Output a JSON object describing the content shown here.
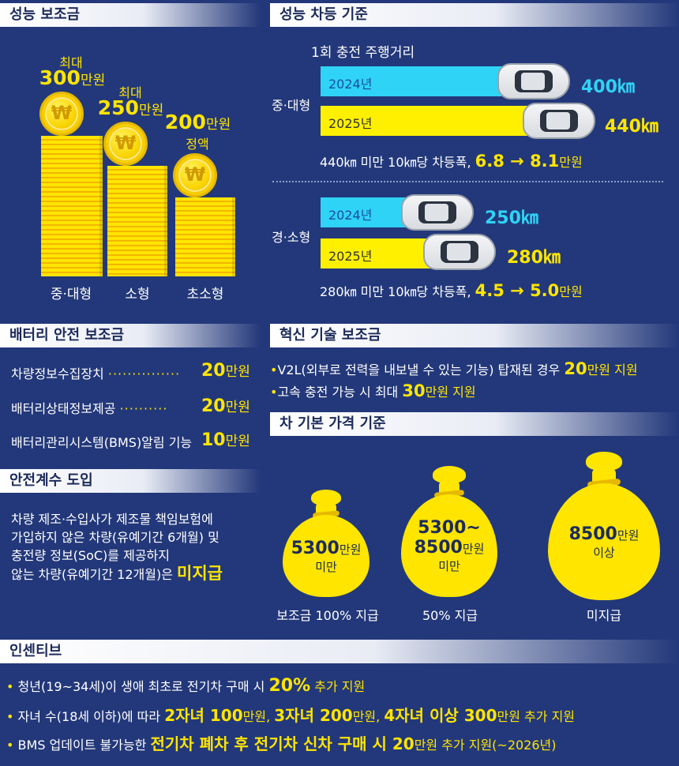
{
  "perf_subsidy": {
    "title": "성능 보조금",
    "bars": [
      {
        "label": "중·대형",
        "cap_top": "최대",
        "amount": "300",
        "unit": "만원",
        "cap_bottom": "",
        "value": 300
      },
      {
        "label": "소형",
        "cap_top": "최대",
        "amount": "250",
        "unit": "만원",
        "cap_bottom": "",
        "value": 250
      },
      {
        "label": "초소형",
        "cap_top": "",
        "amount": "200",
        "unit": "만원",
        "cap_bottom": "정액",
        "value": 200
      }
    ],
    "coin_symbol": "₩"
  },
  "perf_diff": {
    "title": "성능 차등 기준",
    "subtitle": "1회 충전 주행거리",
    "groups": [
      {
        "label": "중·대형",
        "rows": [
          {
            "year": "2024년",
            "range": "400㎞",
            "value": 400
          },
          {
            "year": "2025년",
            "range": "440㎞",
            "value": 440
          }
        ],
        "note_prefix": "440㎞ 미만 10㎞당 차등폭, ",
        "note_change": "6.8 → 8.1",
        "note_unit": "만원"
      },
      {
        "label": "경·소형",
        "rows": [
          {
            "year": "2024년",
            "range": "250㎞",
            "value": 250
          },
          {
            "year": "2025년",
            "range": "280㎞",
            "value": 280
          }
        ],
        "note_prefix": "280㎞ 미만 10㎞당 차등폭, ",
        "note_change": "4.5 → 5.0",
        "note_unit": "만원"
      }
    ]
  },
  "battery": {
    "title": "배터리 안전 보조금",
    "items": [
      {
        "label": "차량정보수집장치",
        "dots": "···············",
        "amount": "20",
        "unit": "만원"
      },
      {
        "label": "배터리상태정보제공",
        "dots": "··········",
        "amount": "20",
        "unit": "만원"
      },
      {
        "label": "배터리관리시스템(BMS)알림 기능",
        "dots": "",
        "amount": "10",
        "unit": "만원"
      }
    ]
  },
  "innovation": {
    "title": "혁신 기술 보조금",
    "items": [
      {
        "text": "V2L(외부로 전력을 내보낼 수 있는 기능) 탑재된 경우 ",
        "amount": "20",
        "tail": "만원 지원"
      },
      {
        "text": "고속 충전 가능 시 최대 ",
        "amount": "30",
        "tail": "만원 지원"
      }
    ]
  },
  "base_price": {
    "title": "차 기본 가격 기준",
    "bags": [
      {
        "line1_num": "5300",
        "line1_unit": "만원",
        "line2": "미만",
        "label": "보조금 100% 지급"
      },
      {
        "line0": "5300~",
        "line1_num": "8500",
        "line1_unit": "만원",
        "line2": "미만",
        "label": "50% 지급"
      },
      {
        "line1_num": "8500",
        "line1_unit": "만원",
        "line2": "이상",
        "label": "미지급"
      }
    ]
  },
  "safety": {
    "title": "안전계수 도입",
    "lines": [
      "차량 제조·수입사가 제조물 책임보험에",
      "가입하지 않은 차량(유예기간 6개월) 및",
      "충전량 정보(SoC)를 제공하지",
      "않는 차량(유예기간 12개월)은 "
    ],
    "highlight": "미지급"
  },
  "incentive": {
    "title": "인센티브",
    "line1": {
      "a": "청년(19~34세)이 생애 최초로 전기차 구매 시 ",
      "b": "20%",
      "c": " 추가 지원"
    },
    "line2": {
      "a": "자녀 수(18세 이하)에 따라 ",
      "b1": "2자녀 100",
      "u1": "만원, ",
      "b2": "3자녀 200",
      "u2": "만원, ",
      "b3": "4자녀 이상 300",
      "u3": "만원 추가 지원"
    },
    "line3": {
      "a": "BMS 업데이트 불가능한 ",
      "b": "전기차 폐차 후 전기차 신차 구매 시 ",
      "c": "20",
      "d": "만원 추가 지원(~2026년)"
    }
  },
  "colors": {
    "background": "#23387a",
    "accent": "#ffe500",
    "cyan": "#2fd3f5"
  }
}
